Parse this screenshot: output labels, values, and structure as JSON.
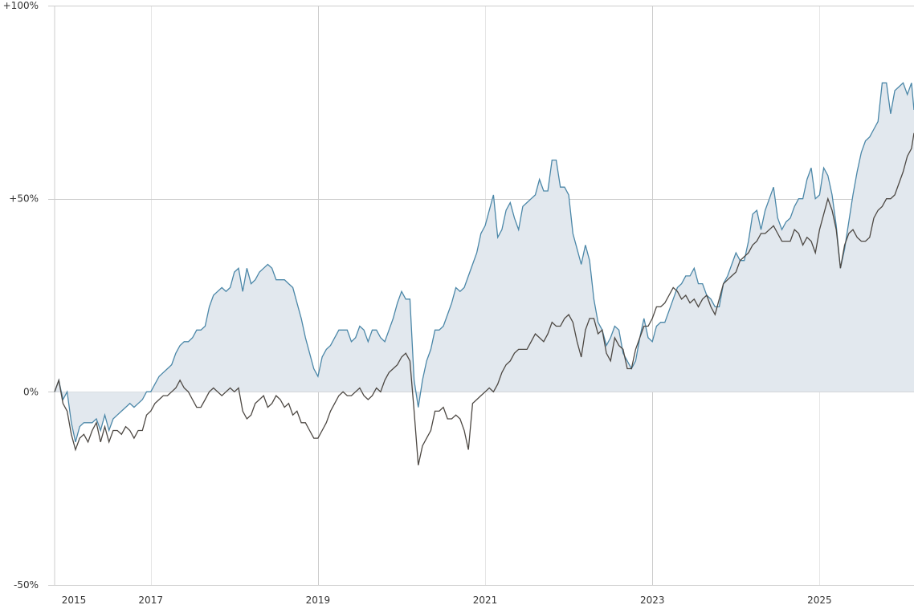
{
  "chart_data": {
    "type": "area",
    "title": "",
    "xlabel": "",
    "ylabel": "",
    "xlim": [
      2015.85,
      2026.13
    ],
    "ylim": [
      -50,
      100
    ],
    "grid": true,
    "legend": "none",
    "y_ticks": [
      {
        "value": 100,
        "label": "+100%"
      },
      {
        "value": 50,
        "label": "+50%"
      },
      {
        "value": 0,
        "label": "0%"
      },
      {
        "value": -50,
        "label": "-50%"
      }
    ],
    "x_ticks": [
      {
        "value": 2015,
        "label": "2015"
      },
      {
        "value": 2017,
        "label": "2017"
      },
      {
        "value": 2019,
        "label": "2019"
      },
      {
        "value": 2021,
        "label": "2021"
      },
      {
        "value": 2023,
        "label": "2023"
      },
      {
        "value": 2025,
        "label": "2025"
      }
    ],
    "colors": {
      "series_a": "#4b87a8",
      "series_a_fill": "#e2e8ee",
      "series_b": "#4d4843",
      "grid": "#cccccc",
      "grid_light": "#e6e6e6"
    },
    "x": [
      2015.85,
      2015.9,
      2015.95,
      2016.0,
      2016.05,
      2016.1,
      2016.15,
      2016.2,
      2016.25,
      2016.3,
      2016.35,
      2016.4,
      2016.45,
      2016.5,
      2016.55,
      2016.6,
      2016.65,
      2016.7,
      2016.75,
      2016.8,
      2016.85,
      2016.9,
      2016.95,
      2017.0,
      2017.05,
      2017.1,
      2017.15,
      2017.2,
      2017.25,
      2017.3,
      2017.35,
      2017.4,
      2017.45,
      2017.5,
      2017.55,
      2017.6,
      2017.65,
      2017.7,
      2017.75,
      2017.8,
      2017.85,
      2017.9,
      2017.95,
      2018.0,
      2018.05,
      2018.1,
      2018.15,
      2018.2,
      2018.25,
      2018.3,
      2018.35,
      2018.4,
      2018.45,
      2018.5,
      2018.55,
      2018.6,
      2018.65,
      2018.7,
      2018.75,
      2018.8,
      2018.85,
      2018.9,
      2018.95,
      2019.0,
      2019.05,
      2019.1,
      2019.15,
      2019.2,
      2019.25,
      2019.3,
      2019.35,
      2019.4,
      2019.45,
      2019.5,
      2019.55,
      2019.6,
      2019.65,
      2019.7,
      2019.75,
      2019.8,
      2019.85,
      2019.9,
      2019.95,
      2020.0,
      2020.05,
      2020.1,
      2020.15,
      2020.2,
      2020.25,
      2020.3,
      2020.35,
      2020.4,
      2020.45,
      2020.5,
      2020.55,
      2020.6,
      2020.65,
      2020.7,
      2020.75,
      2020.8,
      2020.85,
      2020.9,
      2020.95,
      2021.0,
      2021.05,
      2021.1,
      2021.15,
      2021.2,
      2021.25,
      2021.3,
      2021.35,
      2021.4,
      2021.45,
      2021.5,
      2021.55,
      2021.6,
      2021.65,
      2021.7,
      2021.75,
      2021.8,
      2021.85,
      2021.9,
      2021.95,
      2022.0,
      2022.05,
      2022.1,
      2022.15,
      2022.2,
      2022.25,
      2022.3,
      2022.35,
      2022.4,
      2022.45,
      2022.5,
      2022.55,
      2022.6,
      2022.65,
      2022.7,
      2022.75,
      2022.8,
      2022.85,
      2022.9,
      2022.95,
      2023.0,
      2023.05,
      2023.1,
      2023.15,
      2023.2,
      2023.25,
      2023.3,
      2023.35,
      2023.4,
      2023.45,
      2023.5,
      2023.55,
      2023.6,
      2023.65,
      2023.7,
      2023.75,
      2023.8,
      2023.85,
      2023.9,
      2023.95,
      2024.0,
      2024.05,
      2024.1,
      2024.15,
      2024.2,
      2024.25,
      2024.3,
      2024.35,
      2024.4,
      2024.45,
      2024.5,
      2024.55,
      2024.6,
      2024.65,
      2024.7,
      2024.75,
      2024.8,
      2024.85,
      2024.9,
      2024.95,
      2025.0,
      2025.05,
      2025.1,
      2025.15,
      2025.2,
      2025.25,
      2025.3,
      2025.35,
      2025.4,
      2025.45,
      2025.5,
      2025.55,
      2025.6,
      2025.65,
      2025.7,
      2025.75,
      2025.8,
      2025.85,
      2025.9,
      2025.95,
      2026.0,
      2026.05,
      2026.1,
      2026.13
    ],
    "series": [
      {
        "values": [
          0,
          3,
          -2,
          0,
          -8,
          -13,
          -9,
          -8,
          -8,
          -8,
          -7,
          -10,
          -6,
          -10,
          -7,
          -6,
          -5,
          -4,
          -3,
          -4,
          -3,
          -2,
          0,
          0,
          2,
          4,
          5,
          6,
          7,
          10,
          12,
          13,
          13,
          14,
          16,
          16,
          17,
          22,
          25,
          26,
          27,
          26,
          27,
          31,
          32,
          26,
          32,
          28,
          29,
          31,
          32,
          33,
          32,
          29,
          29,
          29,
          28,
          27,
          23,
          19,
          14,
          10,
          6,
          4,
          9,
          11,
          12,
          14,
          16,
          16,
          16,
          13,
          14,
          17,
          16,
          13,
          16,
          16,
          14,
          13,
          16,
          19,
          23,
          26,
          24,
          24,
          3,
          -4,
          3,
          8,
          11,
          16,
          16,
          17,
          20,
          23,
          27,
          26,
          27,
          30,
          33,
          36,
          41,
          43,
          47,
          51,
          40,
          42,
          47,
          49,
          45,
          42,
          48,
          49,
          50,
          51,
          55,
          52,
          52,
          60,
          60,
          53,
          53,
          51,
          41,
          37,
          33,
          38,
          34,
          24,
          18,
          16,
          12,
          14,
          17,
          16,
          10,
          8,
          6,
          8,
          14,
          19,
          14,
          13,
          17,
          18,
          18,
          21,
          24,
          27,
          28,
          30,
          30,
          32,
          28,
          28,
          25,
          24,
          22,
          22,
          28,
          30,
          33,
          36,
          34,
          34,
          39,
          46,
          47,
          42,
          47,
          50,
          53,
          45,
          42,
          44,
          45,
          48,
          50,
          50,
          55,
          58,
          50,
          51,
          58,
          56,
          51,
          43,
          32,
          37,
          44,
          51,
          57,
          62,
          65,
          66,
          68,
          70,
          80,
          80,
          72,
          78,
          79,
          80,
          77,
          80,
          73
        ]
      },
      {
        "values": [
          0,
          3,
          -3,
          -5,
          -11,
          -15,
          -12,
          -11,
          -13,
          -10,
          -8,
          -13,
          -9,
          -13,
          -10,
          -10,
          -11,
          -9,
          -10,
          -12,
          -10,
          -10,
          -6,
          -5,
          -3,
          -2,
          -1,
          -1,
          0,
          1,
          3,
          1,
          0,
          -2,
          -4,
          -4,
          -2,
          0,
          1,
          0,
          -1,
          0,
          1,
          0,
          1,
          -5,
          -7,
          -6,
          -3,
          -2,
          -1,
          -4,
          -3,
          -1,
          -2,
          -4,
          -3,
          -6,
          -5,
          -8,
          -8,
          -10,
          -12,
          -12,
          -10,
          -8,
          -5,
          -3,
          -1,
          0,
          -1,
          -1,
          0,
          1,
          -1,
          -2,
          -1,
          1,
          0,
          3,
          5,
          6,
          7,
          9,
          10,
          8,
          -5,
          -19,
          -14,
          -12,
          -10,
          -5,
          -5,
          -4,
          -7,
          -7,
          -6,
          -7,
          -10,
          -15,
          -3,
          -2,
          -1,
          0,
          1,
          0,
          2,
          5,
          7,
          8,
          10,
          11,
          11,
          11,
          13,
          15,
          14,
          13,
          15,
          18,
          17,
          17,
          19,
          20,
          18,
          13,
          9,
          16,
          19,
          19,
          15,
          16,
          10,
          8,
          14,
          12,
          11,
          6,
          6,
          11,
          14,
          17,
          17,
          19,
          22,
          22,
          23,
          25,
          27,
          26,
          24,
          25,
          23,
          24,
          22,
          24,
          25,
          22,
          20,
          24,
          28,
          29,
          30,
          31,
          34,
          35,
          36,
          38,
          39,
          41,
          41,
          42,
          43,
          41,
          39,
          39,
          39,
          42,
          41,
          38,
          40,
          39,
          36,
          42,
          46,
          50,
          47,
          42,
          32,
          38,
          41,
          42,
          40,
          39,
          39,
          40,
          45,
          47,
          48,
          50,
          50,
          51,
          54,
          57,
          61,
          63,
          67
        ]
      }
    ]
  }
}
